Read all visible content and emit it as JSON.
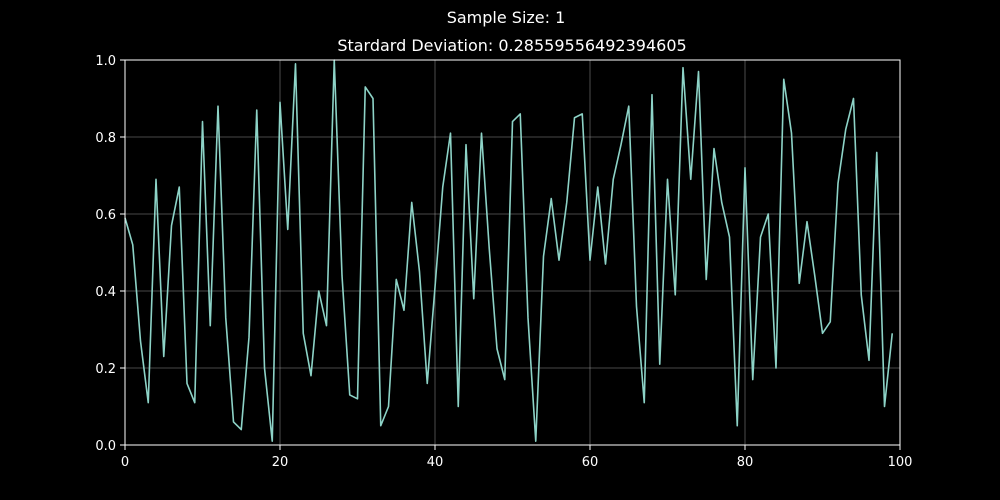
{
  "suptitle": "Sample Size: 1",
  "chart_data": {
    "type": "line",
    "title": "Stardard Deviation: 0.28559556492394605",
    "xlabel": "",
    "ylabel": "",
    "xlim": [
      0,
      100
    ],
    "ylim": [
      0.0,
      1.0
    ],
    "xticks": [
      0,
      20,
      40,
      60,
      80,
      100
    ],
    "xtick_labels": [
      "0",
      "20",
      "40",
      "60",
      "80",
      "100"
    ],
    "yticks": [
      0.0,
      0.2,
      0.4,
      0.6,
      0.8,
      1.0
    ],
    "ytick_labels": [
      "0.0",
      "0.2",
      "0.4",
      "0.6",
      "0.8",
      "1.0"
    ],
    "grid": true,
    "line_color": "#8dd3c7",
    "background": "#000000",
    "series": [
      {
        "x": [
          0,
          1,
          2,
          3,
          4,
          5,
          6,
          7,
          8,
          9,
          10,
          11,
          12,
          13,
          14,
          15,
          16,
          17,
          18,
          19,
          20,
          21,
          22,
          23,
          24,
          25,
          26,
          27,
          28,
          29,
          30,
          31,
          32,
          33,
          34,
          35,
          36,
          37,
          38,
          39,
          40,
          41,
          42,
          43,
          44,
          45,
          46,
          47,
          48,
          49,
          50,
          51,
          52,
          53,
          54,
          55,
          56,
          57,
          58,
          59,
          60,
          61,
          62,
          63,
          64,
          65,
          66,
          67,
          68,
          69,
          70,
          71,
          72,
          73,
          74,
          75,
          76,
          77,
          78,
          79,
          80,
          81,
          82,
          83,
          84,
          85,
          86,
          87,
          88,
          89,
          90,
          91,
          92,
          93,
          94,
          95,
          96,
          97,
          98,
          99
        ],
        "values": [
          0.59,
          0.52,
          0.27,
          0.11,
          0.69,
          0.23,
          0.57,
          0.67,
          0.16,
          0.11,
          0.84,
          0.31,
          0.88,
          0.33,
          0.06,
          0.04,
          0.28,
          0.87,
          0.2,
          0.01,
          0.89,
          0.56,
          0.99,
          0.29,
          0.18,
          0.4,
          0.31,
          1.0,
          0.44,
          0.13,
          0.12,
          0.93,
          0.9,
          0.05,
          0.1,
          0.43,
          0.35,
          0.63,
          0.45,
          0.16,
          0.41,
          0.67,
          0.81,
          0.1,
          0.78,
          0.38,
          0.81,
          0.51,
          0.25,
          0.17,
          0.84,
          0.86,
          0.33,
          0.01,
          0.49,
          0.64,
          0.48,
          0.63,
          0.85,
          0.86,
          0.48,
          0.67,
          0.47,
          0.69,
          0.78,
          0.88,
          0.36,
          0.11,
          0.91,
          0.21,
          0.69,
          0.39,
          0.98,
          0.69,
          0.97,
          0.43,
          0.77,
          0.63,
          0.54,
          0.05,
          0.72,
          0.17,
          0.54,
          0.6,
          0.2,
          0.95,
          0.81,
          0.42,
          0.58,
          0.44,
          0.29,
          0.32,
          0.68,
          0.82,
          0.9,
          0.39,
          0.22,
          0.76,
          0.1,
          0.29
        ]
      }
    ]
  }
}
